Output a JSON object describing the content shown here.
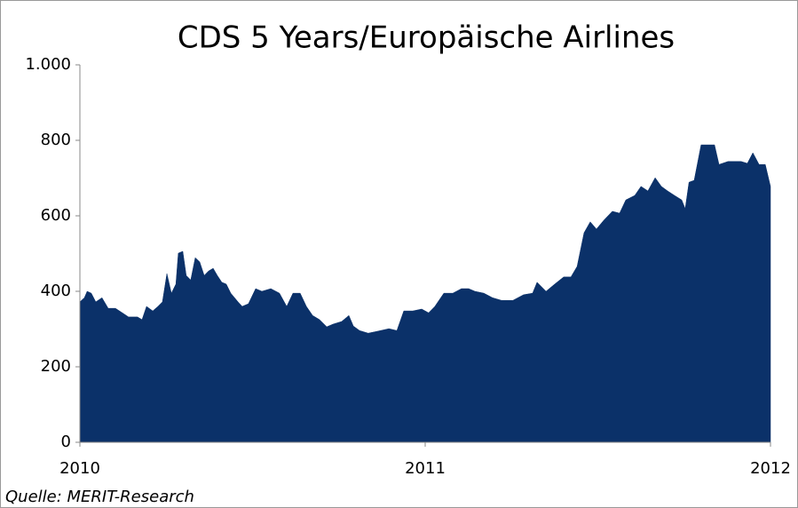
{
  "chart_data": {
    "type": "area",
    "title": "CDS 5 Years/Europäische Airlines",
    "source": "Quelle: MERIT-Research",
    "color": "#0b3169",
    "x": [
      2010,
      2010.013,
      2010.021,
      2010.033,
      2010.046,
      2010.064,
      2010.082,
      2010.103,
      2010.123,
      2010.141,
      2010.167,
      2010.18,
      2010.193,
      2010.211,
      2010.226,
      2010.239,
      2010.252,
      2010.265,
      2010.278,
      2010.285,
      2010.298,
      2010.308,
      2010.321,
      2010.334,
      2010.347,
      2010.36,
      2010.373,
      2010.386,
      2010.398,
      2010.411,
      2010.424,
      2010.437,
      2010.458,
      2010.47,
      2010.488,
      2010.509,
      2010.527,
      2010.553,
      2010.578,
      2010.599,
      2010.617,
      2010.638,
      2010.656,
      2010.674,
      2010.694,
      2010.715,
      2010.733,
      2010.758,
      2010.779,
      2010.792,
      2010.81,
      2010.835,
      2010.861,
      2010.895,
      2010.918,
      2010.938,
      2010.964,
      2010.99,
      2011.01,
      2011.028,
      2011.054,
      2011.08,
      2011.105,
      2011.126,
      2011.144,
      2011.17,
      2011.195,
      2011.221,
      2011.254,
      2011.285,
      2011.311,
      2011.324,
      2011.35,
      2011.375,
      2011.401,
      2011.422,
      2011.44,
      2011.46,
      2011.478,
      2011.496,
      2011.517,
      2011.542,
      2011.563,
      2011.581,
      2011.607,
      2011.625,
      2011.645,
      2011.666,
      2011.684,
      2011.702,
      2011.722,
      2011.743,
      2011.753,
      2011.764,
      2011.779,
      2011.799,
      2011.838,
      2011.851,
      2011.877,
      2011.915,
      2011.933,
      2011.949,
      2011.967,
      2011.985,
      2012
    ],
    "values": [
      372,
      383,
      400,
      395,
      372,
      383,
      355,
      355,
      343,
      332,
      332,
      325,
      360,
      348,
      360,
      372,
      447,
      395,
      419,
      501,
      506,
      442,
      430,
      489,
      478,
      442,
      454,
      461,
      442,
      424,
      419,
      395,
      372,
      360,
      367,
      407,
      400,
      407,
      395,
      360,
      395,
      395,
      360,
      336,
      325,
      306,
      313,
      320,
      336,
      308,
      296,
      289,
      294,
      301,
      296,
      348,
      348,
      353,
      343,
      360,
      395,
      395,
      407,
      407,
      400,
      395,
      383,
      376,
      376,
      391,
      395,
      424,
      400,
      419,
      438,
      438,
      466,
      555,
      584,
      565,
      588,
      612,
      607,
      642,
      654,
      678,
      666,
      701,
      678,
      666,
      654,
      642,
      619,
      689,
      694,
      788,
      788,
      736,
      744,
      744,
      739,
      767,
      736,
      736,
      678
    ],
    "xlim": [
      2010,
      2012
    ],
    "xticks": [
      2010,
      2011,
      2012
    ],
    "ylim": [
      0,
      1000
    ],
    "yticks": [
      0,
      200,
      400,
      600,
      800,
      {
        "value": 1000,
        "label": "1.000"
      }
    ]
  }
}
